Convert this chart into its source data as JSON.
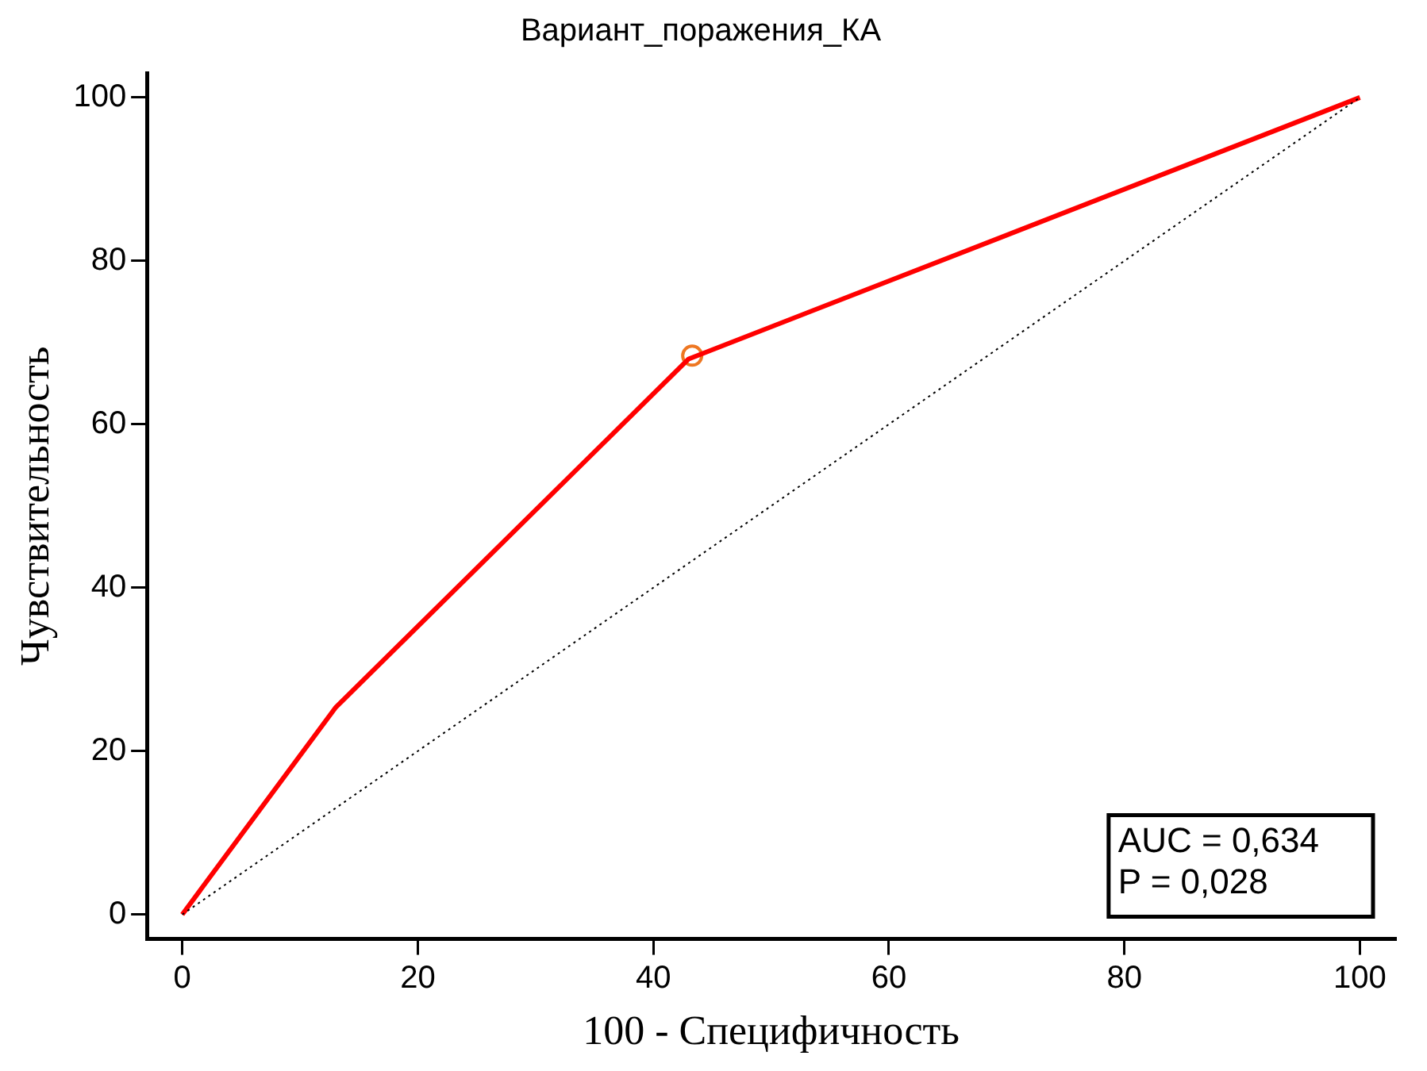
{
  "chart_data": {
    "type": "line",
    "title": "Вариант_поражения_КА",
    "xlabel": "100 - Специфичность",
    "ylabel": "Чувствительность",
    "xlim": [
      -3,
      103
    ],
    "ylim": [
      -3,
      103
    ],
    "xticks": [
      0,
      20,
      40,
      60,
      80,
      100
    ],
    "yticks": [
      0,
      20,
      40,
      60,
      80,
      100
    ],
    "grid": false,
    "legend": false,
    "series": [
      {
        "color": "#000000",
        "x": [
          0,
          100
        ],
        "values": [
          0,
          100
        ],
        "line_style": "dotted",
        "marker": "none"
      },
      {
        "color": "#ff0000",
        "x": [
          0,
          13,
          43,
          100
        ],
        "values": [
          0,
          25.3,
          68,
          100
        ],
        "line_style": "solid",
        "marker": "none"
      },
      {
        "type": "scatter",
        "color": "#ee7722",
        "x": [
          43.3
        ],
        "values": [
          68.4
        ],
        "marker": "circle"
      }
    ],
    "annotations": [
      "AUC = 0,634",
      "P = 0,028"
    ]
  }
}
